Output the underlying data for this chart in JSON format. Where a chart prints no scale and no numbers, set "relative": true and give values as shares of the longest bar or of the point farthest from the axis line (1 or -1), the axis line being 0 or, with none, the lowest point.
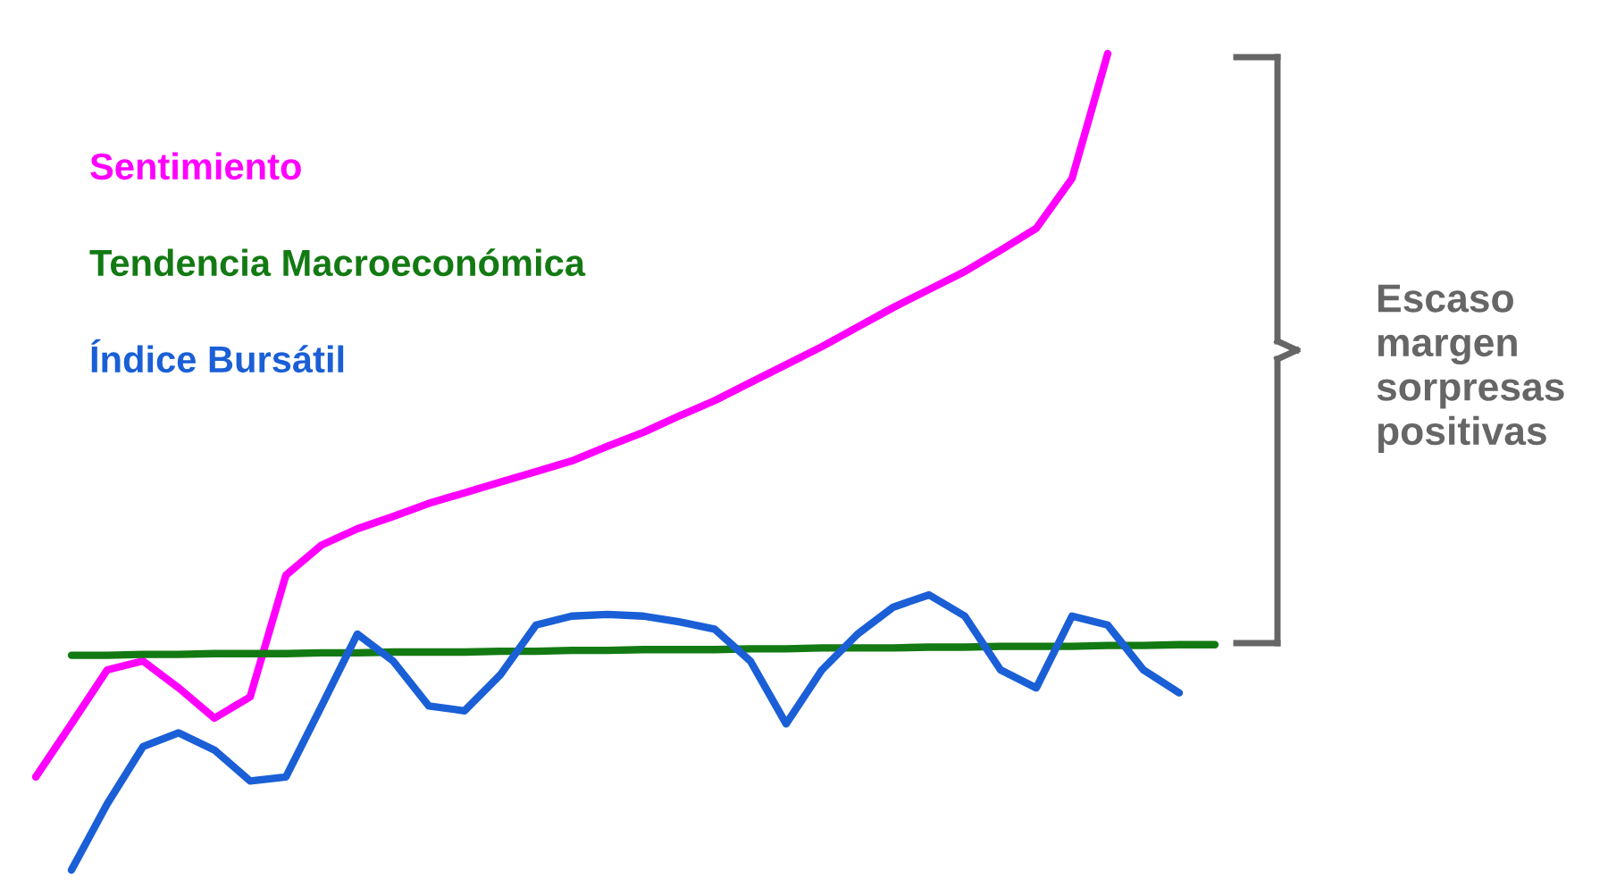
{
  "chart_data": {
    "type": "line",
    "relative": true,
    "legend": "top left",
    "categories": [
      null,
      null,
      null,
      null,
      null,
      null,
      null,
      null,
      null,
      null,
      null,
      null,
      null,
      null,
      null,
      null,
      null,
      null,
      null,
      null,
      null,
      null,
      null,
      null,
      null,
      null,
      null,
      null,
      null,
      null,
      null,
      null,
      null,
      null
    ],
    "series": [
      {
        "name": "Sentimiento",
        "color": "#ff00ff",
        "values": [
          0.114,
          0.179,
          0.245,
          0.256,
          0.223,
          0.186,
          0.212,
          0.361,
          0.398,
          0.418,
          0.433,
          0.449,
          0.462,
          0.475,
          0.488,
          0.501,
          0.519,
          0.536,
          0.556,
          0.575,
          0.597,
          0.619,
          0.641,
          0.665,
          0.689,
          0.711,
          0.733,
          0.759,
          0.786,
          0.847,
          1,
          null,
          null,
          null
        ]
      },
      {
        "name": "Tendencia Macroeconómica",
        "color": "#137a13",
        "values": [
          null,
          0.263,
          0.263,
          0.264,
          0.264,
          0.265,
          0.265,
          0.265,
          0.266,
          0.266,
          0.267,
          0.267,
          0.267,
          0.268,
          0.268,
          0.269,
          0.269,
          0.27,
          0.27,
          0.27,
          0.271,
          0.271,
          0.272,
          0.272,
          0.272,
          0.273,
          0.273,
          0.274,
          0.274,
          0.274,
          0.275,
          0.275,
          0.276,
          0.276
        ]
      },
      {
        "name": "Índice Bursátil",
        "color": "#1a5fd6",
        "values": [
          null,
          0,
          0.081,
          0.151,
          0.168,
          0.147,
          0.109,
          0.114,
          0.201,
          0.289,
          0.256,
          0.201,
          0.195,
          0.239,
          0.3,
          0.311,
          0.313,
          0.311,
          0.304,
          0.295,
          0.256,
          0.179,
          0.245,
          0.289,
          0.322,
          0.337,
          0.311,
          0.245,
          0.223,
          0.311,
          0.3,
          0.245,
          0.217,
          null
        ]
      }
    ],
    "annotations": [
      "Escaso margen sorpresas positivas"
    ]
  }
}
